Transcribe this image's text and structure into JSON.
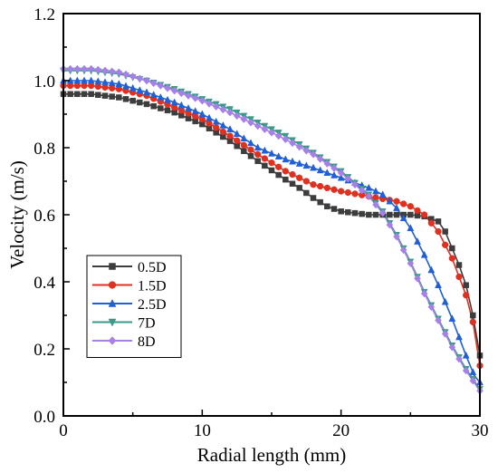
{
  "chart_data": {
    "type": "line",
    "title": "",
    "xlabel": "Radial length (mm)",
    "ylabel": "Velocity (m/s)",
    "xlim": [
      0,
      30
    ],
    "ylim": [
      0.0,
      1.2
    ],
    "x_ticks": [
      0,
      10,
      20,
      30
    ],
    "x_tick_labels": [
      "0",
      "10",
      "20",
      "30"
    ],
    "y_ticks": [
      0.0,
      0.2,
      0.4,
      0.6,
      0.8,
      1.0,
      1.2
    ],
    "y_tick_labels": [
      "0.0",
      "0.2",
      "0.4",
      "0.6",
      "0.8",
      "1.0",
      "1.2"
    ],
    "grid": false,
    "legend_position": "bottom-left",
    "series": [
      {
        "name": "0.5D",
        "color": "#3d3d3d",
        "marker": "square",
        "points": [
          [
            0,
            0.96
          ],
          [
            2,
            0.96
          ],
          [
            4,
            0.95
          ],
          [
            6,
            0.93
          ],
          [
            8,
            0.905
          ],
          [
            10,
            0.87
          ],
          [
            12,
            0.82
          ],
          [
            14,
            0.76
          ],
          [
            16,
            0.705
          ],
          [
            17,
            0.68
          ],
          [
            18,
            0.65
          ],
          [
            19,
            0.625
          ],
          [
            20,
            0.61
          ],
          [
            22,
            0.6
          ],
          [
            24,
            0.6
          ],
          [
            25,
            0.6
          ],
          [
            26,
            0.595
          ],
          [
            27,
            0.58
          ],
          [
            27.5,
            0.55
          ],
          [
            28,
            0.5
          ],
          [
            28.5,
            0.45
          ],
          [
            29,
            0.39
          ],
          [
            29.5,
            0.3
          ],
          [
            30,
            0.18
          ]
        ]
      },
      {
        "name": "1.5D",
        "color": "#e03020",
        "marker": "circle",
        "points": [
          [
            0,
            0.985
          ],
          [
            2,
            0.985
          ],
          [
            4,
            0.975
          ],
          [
            6,
            0.955
          ],
          [
            8,
            0.92
          ],
          [
            10,
            0.885
          ],
          [
            12,
            0.835
          ],
          [
            14,
            0.78
          ],
          [
            16,
            0.73
          ],
          [
            18,
            0.69
          ],
          [
            20,
            0.67
          ],
          [
            22,
            0.655
          ],
          [
            24,
            0.64
          ],
          [
            25,
            0.625
          ],
          [
            26,
            0.6
          ],
          [
            27,
            0.55
          ],
          [
            28,
            0.47
          ],
          [
            29,
            0.36
          ],
          [
            29.5,
            0.28
          ],
          [
            30,
            0.15
          ]
        ]
      },
      {
        "name": "2.5D",
        "color": "#1f5fd8",
        "marker": "triangle-up",
        "points": [
          [
            0,
            1.0
          ],
          [
            2,
            1.0
          ],
          [
            4,
            0.99
          ],
          [
            6,
            0.965
          ],
          [
            8,
            0.935
          ],
          [
            10,
            0.9
          ],
          [
            12,
            0.855
          ],
          [
            14,
            0.8
          ],
          [
            16,
            0.765
          ],
          [
            18,
            0.74
          ],
          [
            20,
            0.71
          ],
          [
            22,
            0.68
          ],
          [
            23,
            0.66
          ],
          [
            24,
            0.62
          ],
          [
            25,
            0.56
          ],
          [
            26,
            0.48
          ],
          [
            27,
            0.39
          ],
          [
            28,
            0.29
          ],
          [
            29,
            0.18
          ],
          [
            29.6,
            0.12
          ],
          [
            30,
            0.1
          ]
        ]
      },
      {
        "name": "7D",
        "color": "#3a9a8a",
        "marker": "triangle-down",
        "points": [
          [
            0,
            1.03
          ],
          [
            2,
            1.03
          ],
          [
            4,
            1.02
          ],
          [
            6,
            1.0
          ],
          [
            8,
            0.975
          ],
          [
            10,
            0.945
          ],
          [
            12,
            0.915
          ],
          [
            14,
            0.875
          ],
          [
            16,
            0.835
          ],
          [
            18,
            0.785
          ],
          [
            20,
            0.73
          ],
          [
            22,
            0.66
          ],
          [
            23,
            0.61
          ],
          [
            24,
            0.54
          ],
          [
            25,
            0.46
          ],
          [
            26,
            0.37
          ],
          [
            27,
            0.29
          ],
          [
            28,
            0.21
          ],
          [
            29,
            0.14
          ],
          [
            30,
            0.08
          ]
        ]
      },
      {
        "name": "8D",
        "color": "#a77fe8",
        "marker": "diamond",
        "points": [
          [
            0,
            1.035
          ],
          [
            2,
            1.035
          ],
          [
            4,
            1.025
          ],
          [
            6,
            1.0
          ],
          [
            8,
            0.97
          ],
          [
            10,
            0.94
          ],
          [
            12,
            0.905
          ],
          [
            14,
            0.865
          ],
          [
            16,
            0.825
          ],
          [
            18,
            0.78
          ],
          [
            20,
            0.725
          ],
          [
            22,
            0.655
          ],
          [
            23,
            0.605
          ],
          [
            24,
            0.535
          ],
          [
            25,
            0.455
          ],
          [
            26,
            0.365
          ],
          [
            27,
            0.285
          ],
          [
            28,
            0.205
          ],
          [
            29,
            0.135
          ],
          [
            30,
            0.075
          ]
        ]
      }
    ]
  }
}
